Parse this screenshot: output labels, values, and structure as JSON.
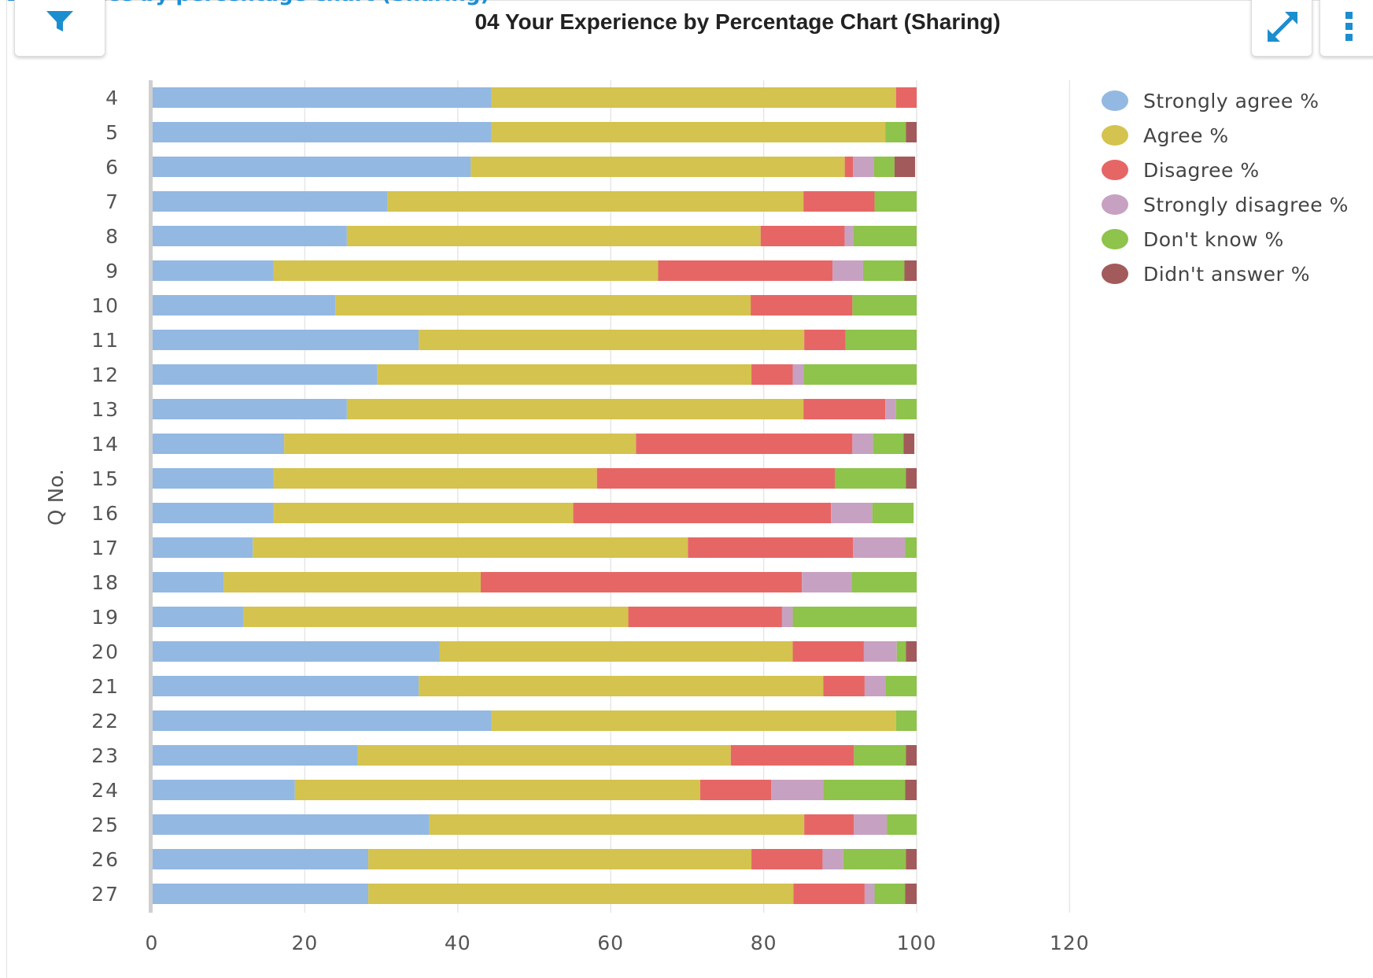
{
  "page_heading": "Experience by percentage chart (Sharing)",
  "icons": {
    "filter": "filter-icon",
    "expand": "expand-icon",
    "more": "more-vertical-icon"
  },
  "chart_data": {
    "type": "bar",
    "orientation": "horizontal",
    "stacked": true,
    "title": "04 Your Experience by Percentage Chart (Sharing)",
    "ylabel": "Q No.",
    "xlabel": "",
    "xlim": [
      0,
      120
    ],
    "xticks": [
      0,
      20,
      40,
      60,
      80,
      100,
      120
    ],
    "grid": true,
    "legend_position": "top-right",
    "categories": [
      "4",
      "5",
      "6",
      "7",
      "8",
      "9",
      "10",
      "11",
      "12",
      "13",
      "14",
      "15",
      "16",
      "17",
      "18",
      "19",
      "20",
      "21",
      "22",
      "23",
      "24",
      "25",
      "26",
      "27"
    ],
    "series": [
      {
        "name": "Strongly agree %",
        "color": "#93b8e2",
        "values": [
          44.4,
          44.4,
          41.7,
          30.8,
          25.5,
          15.9,
          24.0,
          34.9,
          29.5,
          25.5,
          17.3,
          15.9,
          15.9,
          13.2,
          9.4,
          12.0,
          37.6,
          34.9,
          44.4,
          26.9,
          18.7,
          36.3,
          28.3,
          28.3
        ]
      },
      {
        "name": "Agree %",
        "color": "#d4c34e",
        "values": [
          52.9,
          51.5,
          48.9,
          54.4,
          54.1,
          50.3,
          54.3,
          50.4,
          48.9,
          59.7,
          46.0,
          42.3,
          39.2,
          56.9,
          33.6,
          50.3,
          46.2,
          52.9,
          52.9,
          48.8,
          53.0,
          49.0,
          50.1,
          55.6
        ]
      },
      {
        "name": "Disagree %",
        "color": "#e66666",
        "values": [
          2.7,
          0,
          1.1,
          9.3,
          11.0,
          22.8,
          13.3,
          5.4,
          5.4,
          10.7,
          28.3,
          31.1,
          33.7,
          21.6,
          42.0,
          20.1,
          9.3,
          5.4,
          0,
          16.1,
          9.3,
          6.5,
          9.3,
          9.3
        ]
      },
      {
        "name": "Strongly disagree %",
        "color": "#c7a1c1",
        "values": [
          0,
          0,
          2.7,
          0,
          1.1,
          4.0,
          0,
          0,
          1.4,
          1.4,
          2.7,
          0,
          5.4,
          6.8,
          6.5,
          1.4,
          4.3,
          2.7,
          0,
          0,
          6.8,
          4.3,
          2.7,
          1.3
        ]
      },
      {
        "name": "Don't know %",
        "color": "#8ec34c",
        "values": [
          0,
          2.7,
          2.7,
          5.5,
          8.3,
          5.4,
          8.4,
          9.3,
          14.8,
          2.7,
          4.0,
          9.3,
          5.4,
          1.5,
          8.5,
          16.2,
          1.2,
          4.1,
          2.7,
          6.8,
          10.7,
          3.9,
          8.2,
          4.0
        ]
      },
      {
        "name": "Didn't answer %",
        "color": "#a35a5a",
        "values": [
          0,
          1.4,
          2.7,
          0,
          0,
          1.6,
          0,
          0,
          0,
          0,
          1.4,
          1.4,
          0,
          0,
          0,
          0,
          1.4,
          0,
          0,
          1.4,
          1.5,
          0,
          1.4,
          1.5
        ]
      }
    ]
  }
}
